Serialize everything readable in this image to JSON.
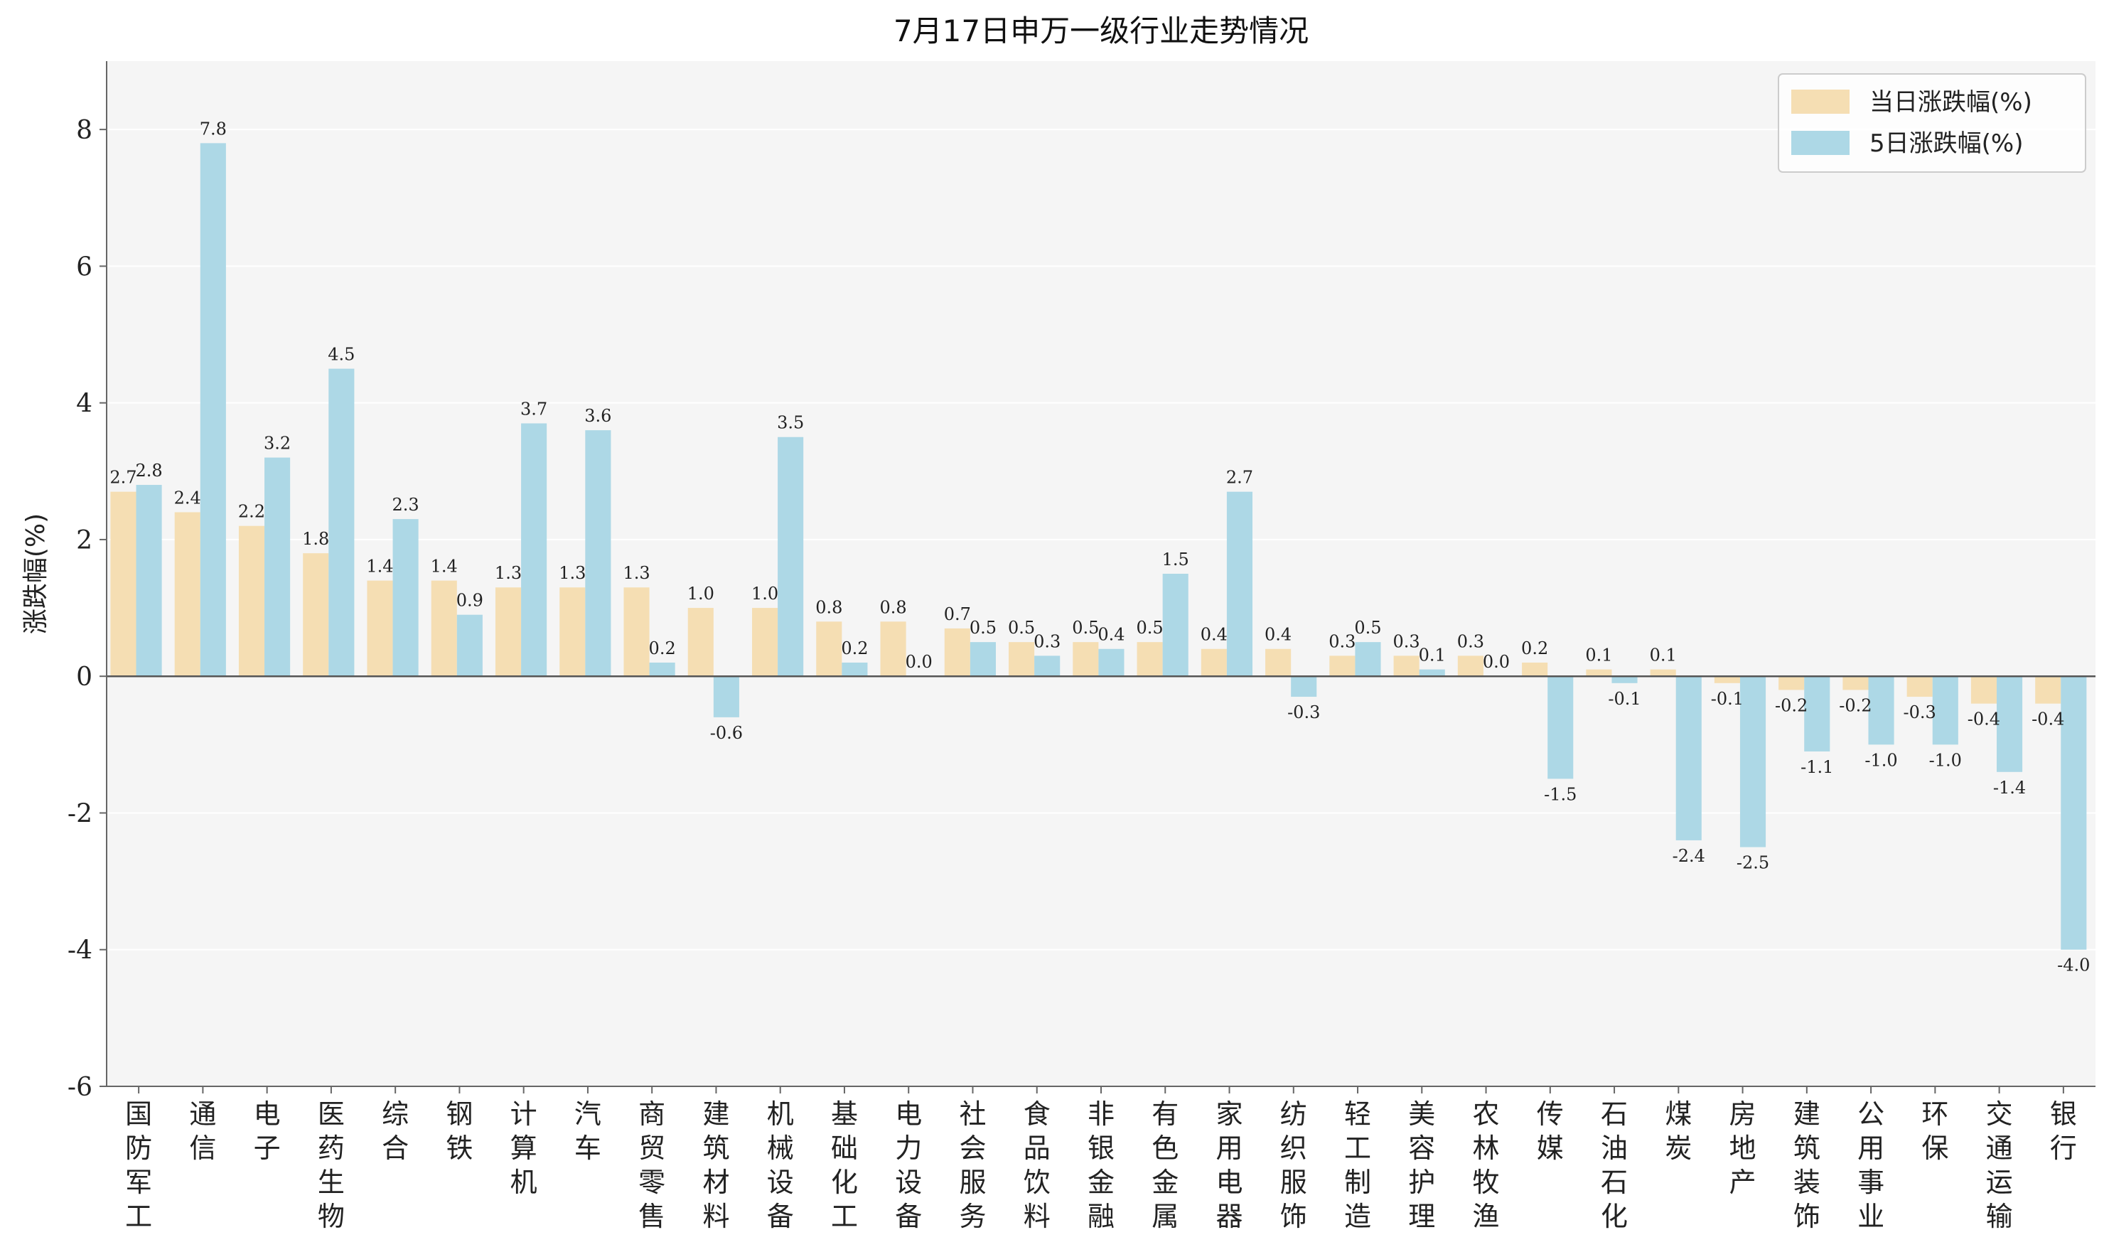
{
  "chart_data": {
    "type": "bar",
    "title": "7月17日申万一级行业走势情况",
    "ylabel": "涨跌幅(%)",
    "xlabel": "",
    "ylim": [
      -6,
      9
    ],
    "yticks": [
      -6,
      -4,
      -2,
      0,
      2,
      4,
      6,
      8
    ],
    "grid": "horizontal",
    "legend_position": "top-right",
    "categories": [
      "国防军工",
      "通信",
      "电子",
      "医药生物",
      "综合",
      "钢铁",
      "计算机",
      "汽车",
      "商贸零售",
      "建筑材料",
      "机械设备",
      "基础化工",
      "电力设备",
      "社会服务",
      "食品饮料",
      "非银金融",
      "有色金属",
      "家用电器",
      "纺织服饰",
      "轻工制造",
      "美容护理",
      "农林牧渔",
      "传媒",
      "石油石化",
      "煤炭",
      "房地产",
      "建筑装饰",
      "公用事业",
      "环保",
      "交通运输",
      "银行"
    ],
    "series": [
      {
        "name": "当日涨跌幅(%)",
        "color": "#F5DEB3",
        "values": [
          2.7,
          2.4,
          2.2,
          1.8,
          1.4,
          1.4,
          1.3,
          1.3,
          1.3,
          1.0,
          1.0,
          0.8,
          0.8,
          0.7,
          0.5,
          0.5,
          0.5,
          0.4,
          0.4,
          0.3,
          0.3,
          0.3,
          0.2,
          0.1,
          0.1,
          -0.1,
          -0.2,
          -0.2,
          -0.3,
          -0.4,
          -0.4
        ]
      },
      {
        "name": "5日涨跌幅(%)",
        "color": "#ADD8E6",
        "values": [
          2.8,
          7.8,
          3.2,
          4.5,
          2.3,
          0.9,
          3.7,
          3.6,
          0.2,
          -0.6,
          3.5,
          0.2,
          0.0,
          0.5,
          0.3,
          0.4,
          1.5,
          2.7,
          -0.3,
          0.5,
          0.1,
          0.0,
          -1.5,
          -0.1,
          -2.4,
          -2.5,
          -1.1,
          -1.0,
          -1.0,
          -1.4,
          -4.0
        ]
      }
    ]
  },
  "colors": {
    "plot_background": "#F5F5F5",
    "grid": "#FFFFFF",
    "axis": "#666666",
    "zero_line": "#555555"
  }
}
